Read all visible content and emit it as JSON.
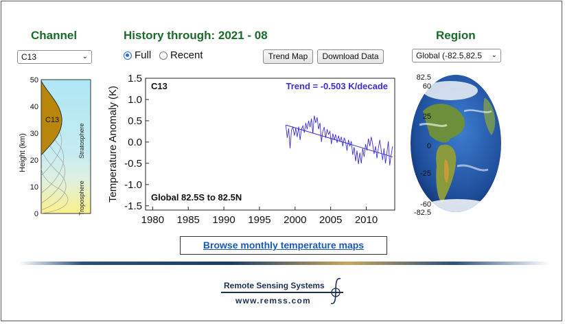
{
  "headings": {
    "channel": "Channel",
    "history": "History through: 2021 - 08",
    "region": "Region"
  },
  "channel_select": {
    "value": "C13"
  },
  "region_select": {
    "value": "Global (-82.5,82.5"
  },
  "view_options": {
    "full_label": "Full",
    "recent_label": "Recent",
    "selected": "Full"
  },
  "buttons": {
    "trend_map": "Trend Map",
    "download_data": "Download Data"
  },
  "profile": {
    "ylabel": "Height  (km)",
    "ticks": [
      "0",
      "10",
      "20",
      "30",
      "40",
      "50"
    ],
    "channel_label": "C13",
    "stratosphere_label": "Stratosphere",
    "troposphere_label": "Troposphere"
  },
  "globe": {
    "top_labels": [
      "82.5",
      "60"
    ],
    "labels": [
      "25",
      "0",
      "-25"
    ],
    "bottom_labels": [
      "-60",
      "-82.5"
    ]
  },
  "browse_link": "Browse monthly temperature maps",
  "footer": {
    "name": "Remote Sensing Systems",
    "url": "www.remss.com"
  },
  "colors": {
    "series": "#3a2fd6",
    "heading": "#1a6b2a",
    "link": "#1a58b8"
  },
  "chart_data": {
    "type": "line",
    "ylabel": "Temperature Anomaly (K)",
    "xlabel": "",
    "xlim": [
      1979,
      2014
    ],
    "ylim": [
      -1.6,
      1.5
    ],
    "xticks": [
      1980,
      1985,
      1990,
      1995,
      2000,
      2005,
      2010
    ],
    "yticks": [
      1.5,
      1.0,
      0.5,
      0.0,
      -0.5,
      -1.0,
      -1.5
    ],
    "channel_label": "C13",
    "trend_label": "Trend = -0.503 K/decade",
    "region_label": "Global  82.5S to  82.5N",
    "grid": false,
    "trend_line": {
      "x": [
        1998.7,
        2013.7
      ],
      "y": [
        0.4,
        -0.35
      ]
    },
    "series": [
      {
        "values": [
          [
            1998.7,
            0.4
          ],
          [
            1998.9,
            0.1
          ],
          [
            1999.1,
            0.32
          ],
          [
            1999.3,
            -0.15
          ],
          [
            1999.5,
            0.28
          ],
          [
            1999.7,
            0.35
          ],
          [
            1999.9,
            0.15
          ],
          [
            2000.1,
            0.32
          ],
          [
            2000.3,
            0.12
          ],
          [
            2000.5,
            0.36
          ],
          [
            2000.7,
            0.05
          ],
          [
            2000.9,
            0.3
          ],
          [
            2001.1,
            0.38
          ],
          [
            2001.3,
            0.22
          ],
          [
            2001.5,
            0.45
          ],
          [
            2001.7,
            0.3
          ],
          [
            2001.9,
            0.5
          ],
          [
            2002.1,
            0.35
          ],
          [
            2002.3,
            0.55
          ],
          [
            2002.5,
            0.2
          ],
          [
            2002.7,
            0.62
          ],
          [
            2002.9,
            0.45
          ],
          [
            2003.1,
            0.58
          ],
          [
            2003.3,
            0.3
          ],
          [
            2003.5,
            0.45
          ],
          [
            2003.7,
            0.0
          ],
          [
            2003.9,
            0.25
          ],
          [
            2004.1,
            0.35
          ],
          [
            2004.3,
            0.1
          ],
          [
            2004.5,
            0.3
          ],
          [
            2004.7,
            0.18
          ],
          [
            2004.9,
            0.25
          ],
          [
            2005.1,
            -0.05
          ],
          [
            2005.3,
            0.2
          ],
          [
            2005.5,
            0.05
          ],
          [
            2005.7,
            0.18
          ],
          [
            2005.9,
            -0.02
          ],
          [
            2006.1,
            0.15
          ],
          [
            2006.3,
            0.02
          ],
          [
            2006.5,
            0.12
          ],
          [
            2006.7,
            -0.1
          ],
          [
            2006.9,
            0.1
          ],
          [
            2007.1,
            0.0
          ],
          [
            2007.3,
            -0.2
          ],
          [
            2007.5,
            0.05
          ],
          [
            2007.7,
            -0.1
          ],
          [
            2007.9,
            0.02
          ],
          [
            2008.1,
            -0.3
          ],
          [
            2008.3,
            -0.12
          ],
          [
            2008.5,
            -0.45
          ],
          [
            2008.7,
            -0.2
          ],
          [
            2008.9,
            -0.52
          ],
          [
            2009.1,
            -0.25
          ],
          [
            2009.3,
            -0.5
          ],
          [
            2009.5,
            -0.15
          ],
          [
            2009.7,
            -0.35
          ],
          [
            2009.9,
            -0.05
          ],
          [
            2010.1,
            -0.2
          ],
          [
            2010.3,
            0.08
          ],
          [
            2010.5,
            -0.1
          ],
          [
            2010.7,
            0.12
          ],
          [
            2010.9,
            -0.05
          ],
          [
            2011.1,
            -0.28
          ],
          [
            2011.3,
            -0.1
          ],
          [
            2011.5,
            -0.38
          ],
          [
            2011.7,
            -0.15
          ],
          [
            2011.9,
            0.05
          ],
          [
            2012.1,
            -0.2
          ],
          [
            2012.3,
            -0.42
          ],
          [
            2012.5,
            -0.15
          ],
          [
            2012.7,
            -0.5
          ],
          [
            2012.9,
            -0.25
          ],
          [
            2013.1,
            0.02
          ],
          [
            2013.3,
            -0.55
          ],
          [
            2013.5,
            -0.3
          ],
          [
            2013.7,
            -0.1
          ]
        ]
      }
    ]
  }
}
